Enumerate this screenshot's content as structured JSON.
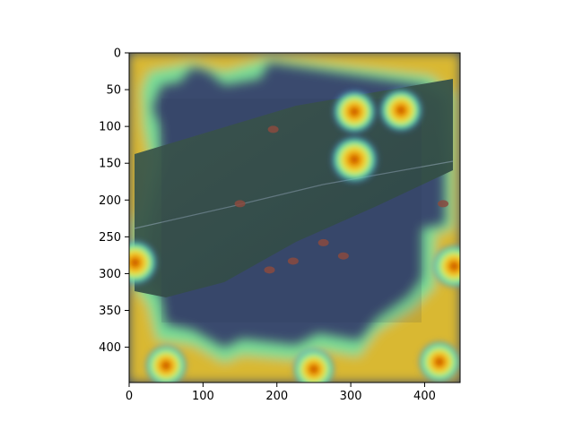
{
  "chart_data": {
    "type": "heatmap",
    "title": "",
    "xlabel": "",
    "ylabel": "",
    "xlim": [
      0,
      448
    ],
    "ylim": [
      448,
      0
    ],
    "x_ticks": [
      0,
      100,
      200,
      300,
      400
    ],
    "y_ticks": [
      0,
      50,
      100,
      150,
      200,
      250,
      300,
      350,
      400
    ],
    "colormap": "jet",
    "overlay_on_image": "leaf photo",
    "grid": false,
    "legend": "none",
    "hotspots": [
      {
        "x": 305,
        "y": 145,
        "value": 1.0
      },
      {
        "x": 305,
        "y": 80,
        "value": 0.85
      },
      {
        "x": 368,
        "y": 78,
        "value": 0.85
      },
      {
        "x": 8,
        "y": 285,
        "value": 0.9
      },
      {
        "x": 440,
        "y": 290,
        "value": 0.85
      },
      {
        "x": 50,
        "y": 425,
        "value": 0.8
      },
      {
        "x": 250,
        "y": 430,
        "value": 0.8
      },
      {
        "x": 420,
        "y": 420,
        "value": 0.8
      }
    ],
    "lesions": [
      {
        "x": 150,
        "y": 205
      },
      {
        "x": 190,
        "y": 295
      },
      {
        "x": 222,
        "y": 283
      },
      {
        "x": 290,
        "y": 276
      },
      {
        "x": 195,
        "y": 104
      },
      {
        "x": 425,
        "y": 205
      },
      {
        "x": 263,
        "y": 258
      }
    ]
  }
}
